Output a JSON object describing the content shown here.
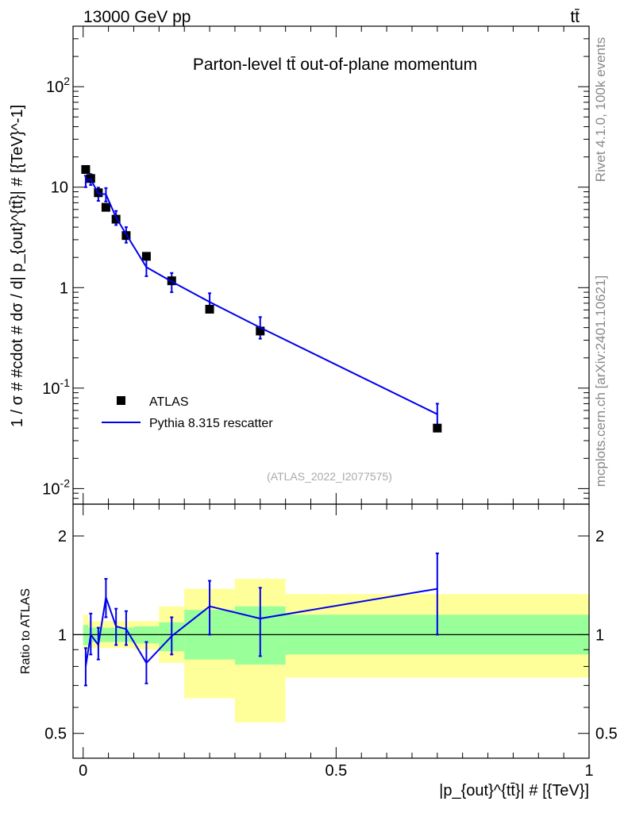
{
  "header": {
    "energy_label": "13000 GeV pp",
    "process_label": "tt̄"
  },
  "sidebar": {
    "rivet_label": "Rivet 4.1.0,  100k events",
    "source_label": "mcplots.cern.ch [arXiv:2401.10621]"
  },
  "chart_data": [
    {
      "type": "scatter",
      "title": "Parton-level tt̄ out-of-plane momentum",
      "analysis_label": "(ATLAS_2022_I2077575)",
      "xlabel": "|p_{out}^{tt̄}| # [{TeV}]",
      "ylabel": "1 / σ # #cdot # dσ / d| p_{out}^{tt̄}| # [{TeV}^-1]",
      "yscale": "log",
      "xlim": [
        -0.02,
        1.0
      ],
      "ylim": [
        0.007,
        400
      ],
      "x_ticks": [
        "0",
        "0.5",
        "1"
      ],
      "y_ticks": [
        "10^-2",
        "10^-1",
        "1",
        "10",
        "10^2"
      ],
      "legend_position": "bottom-left",
      "series": [
        {
          "name": "ATLAS",
          "style": "markers",
          "color": "#000000",
          "x": [
            0.005,
            0.015,
            0.03,
            0.045,
            0.065,
            0.085,
            0.125,
            0.175,
            0.25,
            0.35,
            0.7
          ],
          "y": [
            15.0,
            12.2,
            8.8,
            6.3,
            4.8,
            3.3,
            2.05,
            1.17,
            0.61,
            0.37,
            0.04
          ]
        },
        {
          "name": "Pythia 8.315 rescatter",
          "style": "line",
          "color": "#0000ee",
          "x": [
            0.005,
            0.015,
            0.03,
            0.045,
            0.065,
            0.085,
            0.125,
            0.175,
            0.25,
            0.35,
            0.7
          ],
          "y": [
            11.5,
            12.0,
            8.6,
            8.5,
            5.0,
            3.4,
            1.6,
            1.15,
            0.72,
            0.4,
            0.055
          ],
          "err_low": [
            10.0,
            10.5,
            7.3,
            7.2,
            4.2,
            2.8,
            1.3,
            0.9,
            0.62,
            0.31,
            0.04
          ],
          "err_high": [
            13.0,
            13.5,
            9.9,
            9.8,
            5.8,
            4.0,
            1.9,
            1.4,
            0.88,
            0.51,
            0.07
          ]
        }
      ]
    },
    {
      "type": "line",
      "ylabel": "Ratio to ATLAS",
      "yscale": "log",
      "xlim": [
        -0.02,
        1.0
      ],
      "ylim": [
        0.42,
        2.5
      ],
      "y_ticks": [
        "0.5",
        "1",
        "2"
      ],
      "reference_value": 1.0,
      "bands": [
        {
          "name": "inner",
          "color": "#99ff99",
          "bins": [
            {
              "x0": 0.0,
              "x1": 0.01,
              "low": 0.93,
              "high": 1.07
            },
            {
              "x0": 0.01,
              "x1": 0.1,
              "low": 0.95,
              "high": 1.05
            },
            {
              "x0": 0.1,
              "x1": 0.15,
              "low": 0.94,
              "high": 1.06
            },
            {
              "x0": 0.15,
              "x1": 0.2,
              "low": 0.89,
              "high": 1.09
            },
            {
              "x0": 0.2,
              "x1": 0.3,
              "low": 0.84,
              "high": 1.19
            },
            {
              "x0": 0.3,
              "x1": 0.4,
              "low": 0.81,
              "high": 1.22
            },
            {
              "x0": 0.4,
              "x1": 1.0,
              "low": 0.87,
              "high": 1.15
            }
          ]
        },
        {
          "name": "outer",
          "color": "#ffff99",
          "bins": [
            {
              "x0": 0.0,
              "x1": 0.01,
              "low": 0.9,
              "high": 1.15
            },
            {
              "x0": 0.01,
              "x1": 0.1,
              "low": 0.91,
              "high": 1.1
            },
            {
              "x0": 0.1,
              "x1": 0.15,
              "low": 0.9,
              "high": 1.1
            },
            {
              "x0": 0.15,
              "x1": 0.2,
              "low": 0.82,
              "high": 1.22
            },
            {
              "x0": 0.2,
              "x1": 0.3,
              "low": 0.64,
              "high": 1.38
            },
            {
              "x0": 0.3,
              "x1": 0.4,
              "low": 0.54,
              "high": 1.48
            },
            {
              "x0": 0.4,
              "x1": 1.0,
              "low": 0.74,
              "high": 1.33
            }
          ]
        }
      ],
      "series": [
        {
          "name": "Pythia 8.315 rescatter / ATLAS",
          "color": "#0000ee",
          "x": [
            0.005,
            0.015,
            0.03,
            0.045,
            0.065,
            0.085,
            0.125,
            0.175,
            0.25,
            0.35,
            0.7
          ],
          "y": [
            0.8,
            1.0,
            0.93,
            1.3,
            1.06,
            1.04,
            0.82,
            0.99,
            1.22,
            1.12,
            1.38
          ],
          "err_low": [
            0.7,
            0.87,
            0.84,
            1.13,
            0.93,
            0.93,
            0.71,
            0.87,
            1.0,
            0.86,
            1.0
          ],
          "err_high": [
            0.91,
            1.16,
            1.05,
            1.48,
            1.2,
            1.18,
            0.95,
            1.13,
            1.46,
            1.39,
            1.77
          ]
        }
      ]
    }
  ]
}
